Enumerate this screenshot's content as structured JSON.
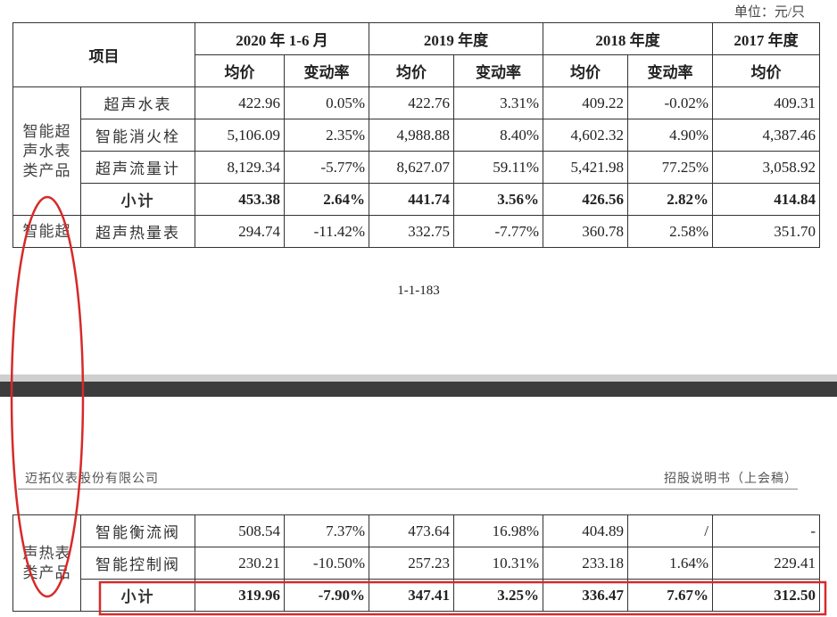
{
  "unit": "单位：元/只",
  "table1": {
    "header": {
      "item": "项目",
      "periods": [
        "2020 年 1-6 月",
        "2019 年度",
        "2018 年度",
        "2017 年度"
      ],
      "columns": [
        "均价",
        "变动率",
        "均价",
        "变动率",
        "均价",
        "变动率",
        "均价"
      ]
    },
    "groups": [
      {
        "label": "智能超声水表类产品",
        "rows": [
          {
            "name": "超声水表",
            "cells": [
              "422.96",
              "0.05%",
              "422.76",
              "3.31%",
              "409.22",
              "-0.02%",
              "409.31"
            ]
          },
          {
            "name": "智能消火栓",
            "cells": [
              "5,106.09",
              "2.35%",
              "4,988.88",
              "8.40%",
              "4,602.32",
              "4.90%",
              "4,387.46"
            ]
          },
          {
            "name": "超声流量计",
            "cells": [
              "8,129.34",
              "-5.77%",
              "8,627.07",
              "59.11%",
              "5,421.98",
              "77.25%",
              "3,058.92"
            ]
          }
        ],
        "subtotal": {
          "name": "小计",
          "cells": [
            "453.38",
            "2.64%",
            "441.74",
            "3.56%",
            "426.56",
            "2.82%",
            "414.84"
          ]
        }
      },
      {
        "label": "智能超",
        "rows": [
          {
            "name": "超声热量表",
            "cells": [
              "294.74",
              "-11.42%",
              "332.75",
              "-7.77%",
              "360.78",
              "2.58%",
              "351.70"
            ]
          }
        ]
      }
    ]
  },
  "page_number": "1-1-183",
  "page2_header": {
    "company": "迈拓仪表股份有限公司",
    "document": "招股说明书（上会稿）"
  },
  "table2": {
    "groups": [
      {
        "label": "声热表类产品",
        "rows": [
          {
            "name": "智能衡流阀",
            "cells": [
              "508.54",
              "7.37%",
              "473.64",
              "16.98%",
              "404.89",
              "/",
              "-"
            ]
          },
          {
            "name": "智能控制阀",
            "cells": [
              "230.21",
              "-10.50%",
              "257.23",
              "10.31%",
              "233.18",
              "1.64%",
              "229.41"
            ]
          }
        ],
        "subtotal": {
          "name": "小计",
          "cells": [
            "319.96",
            "-7.90%",
            "347.41",
            "3.25%",
            "336.47",
            "7.67%",
            "312.50"
          ]
        }
      }
    ]
  }
}
